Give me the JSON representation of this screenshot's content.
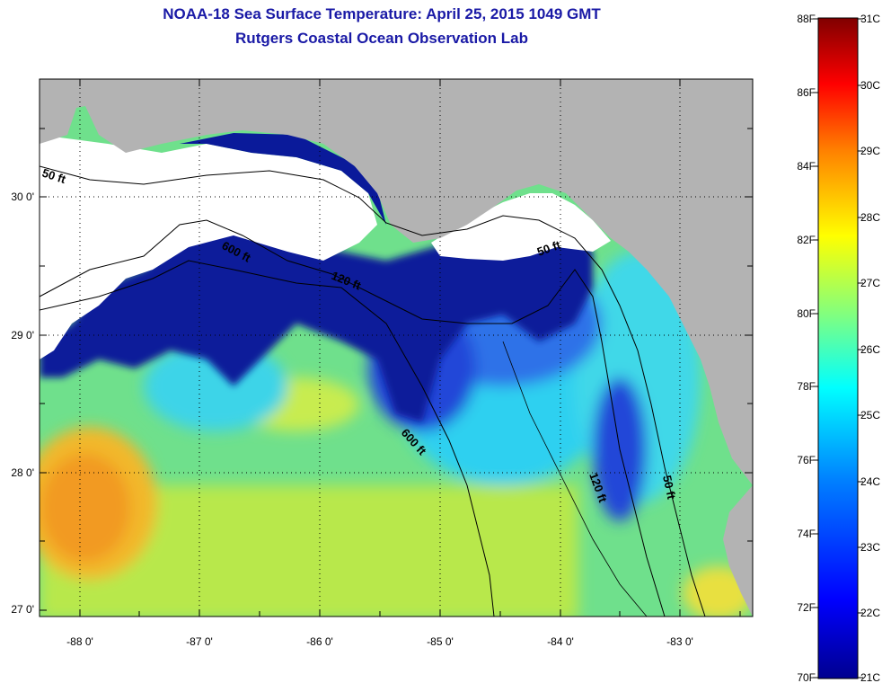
{
  "title": {
    "line1": "NOAA-18 Sea Surface Temperature:  April 25, 2015 1049 GMT",
    "line2": "Rutgers Coastal Ocean Observation Lab"
  },
  "map": {
    "y_ticks": [
      "30 0'",
      "29 0'",
      "28 0'",
      "27 0'"
    ],
    "x_ticks": [
      "-88 0'",
      "-87 0'",
      "-86 0'",
      "-85 0'",
      "-84 0'",
      "-83 0'"
    ],
    "contour_labels": [
      "50 ft",
      "600 ft",
      "120 ft",
      "600 ft",
      "50 ft",
      "120 ft",
      "50 ft"
    ]
  },
  "colorbar": {
    "fahrenheit": [
      "88F",
      "86F",
      "84F",
      "82F",
      "80F",
      "78F",
      "76F",
      "74F",
      "72F",
      "70F"
    ],
    "celsius": [
      "31C",
      "30C",
      "29C",
      "28C",
      "27C",
      "26C",
      "25C",
      "24C",
      "23C",
      "22C",
      "21C"
    ],
    "colors": [
      "#00008f",
      "#0000ff",
      "#0080ff",
      "#00ffff",
      "#80ff80",
      "#ffff00",
      "#ff8000",
      "#ff0000",
      "#800000"
    ]
  },
  "colors": {
    "land": "#b3b3b3",
    "cloud": "#ffffff",
    "title": "#1a1aa6"
  }
}
